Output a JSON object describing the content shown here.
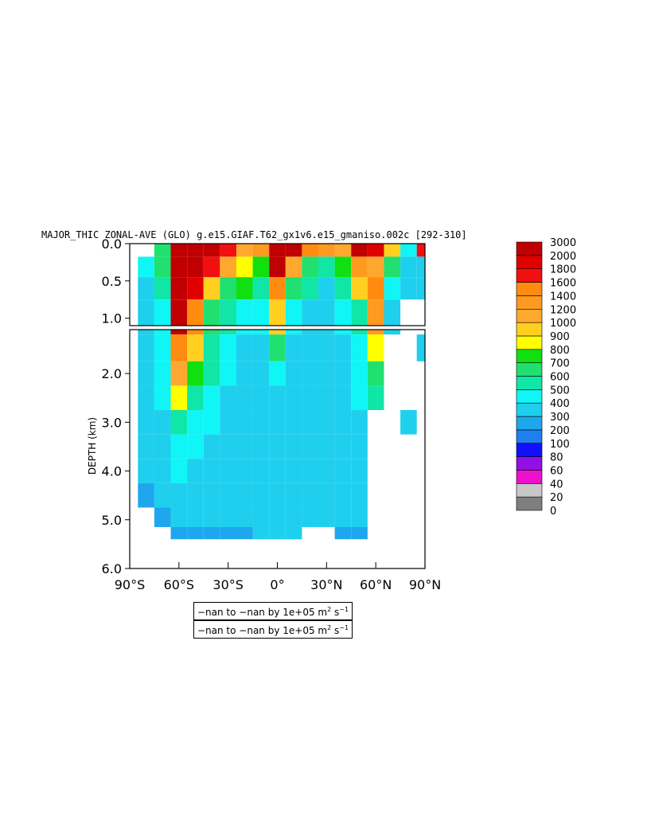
{
  "chart_data": {
    "type": "heatmap",
    "title": "MAJOR_THIC ZONAL-AVE (GLO) g.e15.GIAF.T62_gx1v6.e15_gmaniso.002c [292-310]",
    "ylabel": "DEPTH (km)",
    "xlabel": "",
    "x_ticks": [
      "90°S",
      "60°S",
      "30°S",
      "0°",
      "30°N",
      "60°N",
      "90°N"
    ],
    "xlim": [
      -90,
      90
    ],
    "y_ticks_upper": [
      "0.0",
      "0.5",
      "1.0"
    ],
    "y_ticks_lower": [
      "2.0",
      "3.0",
      "4.0",
      "5.0",
      "6.0"
    ],
    "ylim_upper_km": [
      0,
      1.1
    ],
    "ylim_lower_km": [
      1.1,
      6.0
    ],
    "colorbar": {
      "levels": [
        "0",
        "20",
        "40",
        "60",
        "80",
        "100",
        "200",
        "300",
        "400",
        "500",
        "600",
        "700",
        "800",
        "900",
        "1000",
        "1200",
        "1400",
        "1600",
        "1800",
        "2000",
        "3000"
      ],
      "colors": [
        "#7f7f7f",
        "#c8c8c8",
        "#ee10cf",
        "#9210e6",
        "#1010ff",
        "#1f7fee",
        "#1fa7ee",
        "#1fcfee",
        "#10f5f5",
        "#10e6a6",
        "#20e070",
        "#10e010",
        "#ffff00",
        "#ffd020",
        "#ffa830",
        "#ff9a20",
        "#ff8c10",
        "#f01010",
        "#e00000",
        "#c00000"
      ]
    },
    "description_grid_values": {
      "lat": [
        -80,
        -70,
        -60,
        -50,
        -40,
        -30,
        -20,
        -10,
        0,
        10,
        20,
        30,
        40,
        50,
        60,
        70,
        80,
        90
      ],
      "depth_km": [
        0.05,
        0.3,
        0.6,
        0.9,
        1.5,
        2.0,
        2.5,
        3.0,
        3.5,
        4.0,
        4.5,
        5.0,
        5.3
      ],
      "values": [
        [
          0,
          600,
          3000,
          3000,
          2000,
          1600,
          1000,
          1200,
          3000,
          2000,
          1400,
          1200,
          1000,
          2000,
          1800,
          900,
          400,
          1600
        ],
        [
          400,
          600,
          3000,
          2000,
          1600,
          1000,
          800,
          700,
          2000,
          1000,
          600,
          500,
          700,
          1200,
          1000,
          600,
          300,
          300
        ],
        [
          300,
          500,
          3000,
          1800,
          900,
          600,
          700,
          500,
          1400,
          600,
          500,
          300,
          500,
          900,
          1400,
          400,
          300,
          300
        ],
        [
          300,
          400,
          2000,
          1400,
          600,
          500,
          400,
          400,
          900,
          400,
          300,
          300,
          400,
          500,
          1200,
          300,
          0,
          0
        ],
        [
          300,
          400,
          1400,
          900,
          500,
          400,
          300,
          300,
          600,
          300,
          300,
          300,
          300,
          400,
          800,
          0,
          0,
          300
        ],
        [
          300,
          400,
          1000,
          700,
          500,
          400,
          300,
          300,
          400,
          300,
          300,
          300,
          300,
          400,
          600,
          0,
          0,
          0
        ],
        [
          300,
          400,
          800,
          500,
          400,
          300,
          300,
          300,
          300,
          300,
          300,
          300,
          300,
          400,
          500,
          0,
          0,
          0
        ],
        [
          300,
          300,
          500,
          400,
          400,
          300,
          300,
          300,
          300,
          300,
          300,
          300,
          300,
          300,
          0,
          0,
          300,
          0
        ],
        [
          300,
          300,
          400,
          400,
          300,
          300,
          300,
          300,
          300,
          300,
          300,
          300,
          300,
          300,
          0,
          0,
          0,
          0
        ],
        [
          300,
          300,
          400,
          300,
          300,
          300,
          300,
          300,
          300,
          300,
          300,
          300,
          300,
          300,
          0,
          0,
          0,
          0
        ],
        [
          200,
          300,
          300,
          300,
          300,
          300,
          300,
          300,
          300,
          300,
          300,
          300,
          300,
          300,
          0,
          0,
          0,
          0
        ],
        [
          0,
          200,
          300,
          300,
          300,
          300,
          300,
          300,
          300,
          300,
          300,
          300,
          300,
          300,
          0,
          0,
          0,
          0
        ],
        [
          0,
          0,
          200,
          200,
          200,
          200,
          200,
          300,
          300,
          300,
          0,
          0,
          200,
          200,
          0,
          0,
          0,
          0
        ]
      ]
    }
  },
  "notes": [
    {
      "text": "−nan to −nan by 1e+05 m",
      "sup1": "2",
      "text2": " s",
      "sup2": "−1"
    },
    {
      "text": "−nan to −nan by 1e+05 m",
      "sup1": "2",
      "text2": " s",
      "sup2": "−1"
    }
  ]
}
